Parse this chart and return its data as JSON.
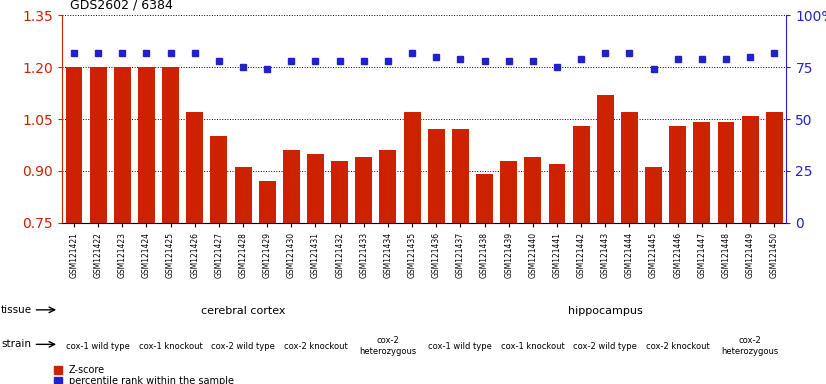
{
  "title": "GDS2602 / 6384",
  "samples": [
    "GSM121421",
    "GSM121422",
    "GSM121423",
    "GSM121424",
    "GSM121425",
    "GSM121426",
    "GSM121427",
    "GSM121428",
    "GSM121429",
    "GSM121430",
    "GSM121431",
    "GSM121432",
    "GSM121433",
    "GSM121434",
    "GSM121435",
    "GSM121436",
    "GSM121437",
    "GSM121438",
    "GSM121439",
    "GSM121440",
    "GSM121441",
    "GSM121442",
    "GSM121443",
    "GSM121444",
    "GSM121445",
    "GSM121446",
    "GSM121447",
    "GSM121448",
    "GSM121449",
    "GSM121450"
  ],
  "z_scores": [
    1.2,
    1.2,
    1.2,
    1.2,
    1.2,
    1.07,
    1.0,
    0.91,
    0.87,
    0.96,
    0.95,
    0.93,
    0.94,
    0.96,
    1.07,
    1.02,
    1.02,
    0.89,
    0.93,
    0.94,
    0.92,
    1.03,
    1.12,
    1.07,
    0.91,
    1.03,
    1.04,
    1.04,
    1.06,
    1.07
  ],
  "percentile": [
    82,
    82,
    82,
    82,
    82,
    82,
    78,
    75,
    74,
    78,
    78,
    78,
    78,
    78,
    82,
    80,
    79,
    78,
    78,
    78,
    75,
    79,
    82,
    82,
    74,
    79,
    79,
    79,
    80,
    82
  ],
  "ylim_left": [
    0.75,
    1.35
  ],
  "ylim_right": [
    0,
    100
  ],
  "yticks_left": [
    0.75,
    0.9,
    1.05,
    1.2,
    1.35
  ],
  "yticks_right": [
    0,
    25,
    50,
    75,
    100
  ],
  "bar_color": "#CC2200",
  "dot_color": "#2222CC",
  "bg_color": "#FFFFFF",
  "tissue_groups": [
    {
      "label": "cerebral cortex",
      "start": 0,
      "end": 14,
      "color": "#AAFFAA"
    },
    {
      "label": "hippocampus",
      "start": 15,
      "end": 29,
      "color": "#55EE55"
    }
  ],
  "strain_groups": [
    {
      "label": "cox-1 wild type",
      "start": 0,
      "end": 2,
      "color": "#FFFFFF"
    },
    {
      "label": "cox-1 knockout",
      "start": 3,
      "end": 5,
      "color": "#EE88EE"
    },
    {
      "label": "cox-2 wild type",
      "start": 6,
      "end": 8,
      "color": "#FFFFFF"
    },
    {
      "label": "cox-2 knockout",
      "start": 9,
      "end": 11,
      "color": "#EE88EE"
    },
    {
      "label": "cox-2\nheterozygous",
      "start": 12,
      "end": 14,
      "color": "#EE88EE"
    },
    {
      "label": "cox-1 wild type",
      "start": 15,
      "end": 17,
      "color": "#FFFFFF"
    },
    {
      "label": "cox-1 knockout",
      "start": 18,
      "end": 20,
      "color": "#EE88EE"
    },
    {
      "label": "cox-2 wild type",
      "start": 21,
      "end": 23,
      "color": "#FFFFFF"
    },
    {
      "label": "cox-2 knockout",
      "start": 24,
      "end": 26,
      "color": "#EE88EE"
    },
    {
      "label": "cox-2\nheterozygous",
      "start": 27,
      "end": 29,
      "color": "#EE88EE"
    }
  ],
  "figsize": [
    8.26,
    3.84
  ],
  "dpi": 100
}
